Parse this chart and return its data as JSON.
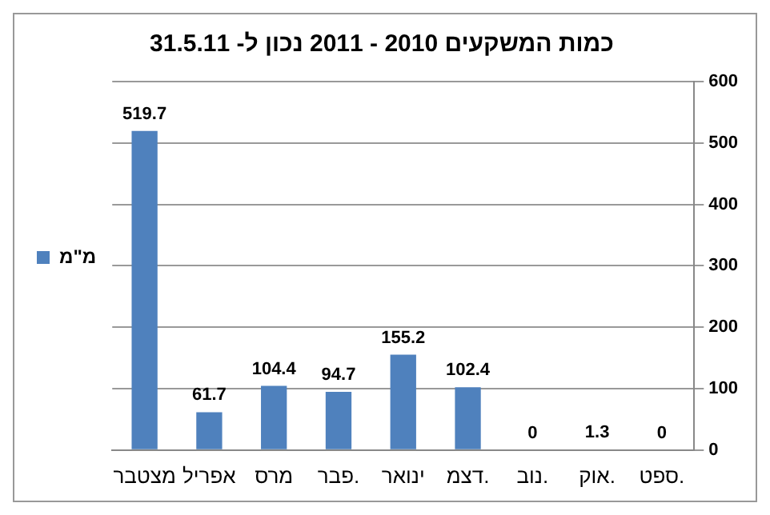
{
  "chart_data": {
    "type": "bar",
    "title": "כמות המשקעים 2010 - 2011 נכון ל- 31.5.11",
    "categories": [
      "מצטבר",
      "אפריל",
      "מרס",
      "פבר.",
      "ינואר",
      "דצמ.",
      "נוב.",
      "אוק.",
      "ספט."
    ],
    "series": [
      {
        "name": "מ\"מ",
        "color": "#4f81bd",
        "values": [
          519.7,
          61.7,
          104.4,
          94.7,
          155.2,
          102.4,
          0,
          1.3,
          0
        ]
      }
    ],
    "ylim": [
      0,
      600
    ],
    "yticks": [
      0,
      100,
      200,
      300,
      400,
      500,
      600
    ],
    "grid": "y",
    "legend": "left",
    "data_labels": true
  }
}
